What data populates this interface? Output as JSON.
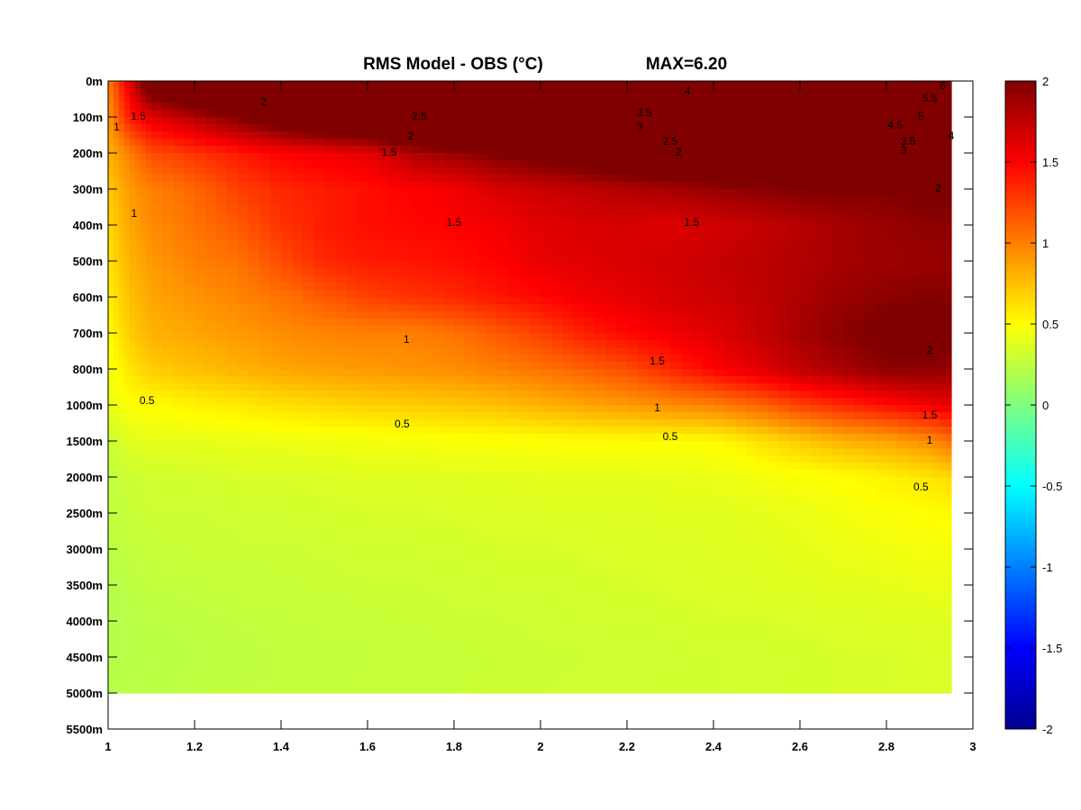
{
  "chart_data": {
    "type": "heatmap",
    "title": "RMS Model - OBS (°C)",
    "annotation": "MAX=6.20",
    "x_ticks": [
      "1",
      "1.2",
      "1.4",
      "1.6",
      "1.8",
      "2",
      "2.2",
      "2.4",
      "2.6",
      "2.8",
      "3"
    ],
    "x_range": [
      1,
      3
    ],
    "y_ticks": [
      "0m",
      "100m",
      "200m",
      "300m",
      "400m",
      "500m",
      "600m",
      "700m",
      "800m",
      "1000m",
      "1500m",
      "2000m",
      "2500m",
      "3000m",
      "3500m",
      "4000m",
      "4500m",
      "5000m",
      "5500m"
    ],
    "colorbar": {
      "min": -2,
      "max": 2,
      "ticks": [
        "2",
        "1.5",
        "1",
        "0.5",
        "0",
        "-0.5",
        "-1",
        "-1.5",
        "-2"
      ],
      "colormap": "jet"
    },
    "x_columns": [
      1.0,
      1.05,
      1.1,
      1.2,
      1.3,
      1.4,
      1.5,
      1.6,
      1.7,
      1.8,
      1.9,
      2.0,
      2.1,
      2.2,
      2.3,
      2.4,
      2.5,
      2.6,
      2.7,
      2.8,
      2.9,
      2.95
    ],
    "depth_levels": [
      "0m",
      "100m",
      "200m",
      "300m",
      "400m",
      "500m",
      "600m",
      "700m",
      "800m",
      "1000m",
      "1500m",
      "2000m",
      "2500m",
      "3000m",
      "3500m",
      "4000m",
      "4500m",
      "5000m"
    ],
    "values": [
      [
        1.0,
        1.6,
        2.3,
        2.6,
        2.9,
        3.4,
        3.6,
        3.8,
        4.0,
        4.3,
        4.6,
        4.8,
        5.0,
        5.2,
        5.4,
        5.6,
        5.8,
        5.9,
        6.0,
        6.1,
        6.2,
        6.2
      ],
      [
        0.9,
        1.4,
        1.6,
        1.8,
        2.0,
        2.2,
        2.4,
        2.5,
        2.8,
        3.0,
        3.2,
        3.4,
        3.6,
        3.8,
        4.0,
        4.2,
        4.4,
        4.6,
        4.8,
        5.0,
        5.1,
        5.2
      ],
      [
        0.8,
        1.0,
        1.2,
        1.3,
        1.4,
        1.5,
        1.55,
        1.6,
        1.8,
        1.9,
        2.0,
        2.1,
        2.2,
        2.3,
        2.4,
        2.5,
        2.6,
        2.7,
        2.8,
        2.9,
        3.0,
        3.0
      ],
      [
        0.7,
        0.9,
        1.0,
        1.1,
        1.25,
        1.35,
        1.4,
        1.45,
        1.5,
        1.55,
        1.65,
        1.7,
        1.75,
        1.8,
        1.85,
        1.9,
        1.95,
        2.0,
        2.0,
        2.0,
        2.05,
        2.05
      ],
      [
        0.65,
        0.85,
        0.95,
        1.05,
        1.15,
        1.3,
        1.4,
        1.45,
        1.48,
        1.5,
        1.55,
        1.62,
        1.65,
        1.66,
        1.62,
        1.68,
        1.72,
        1.78,
        1.85,
        1.9,
        1.95,
        1.95
      ],
      [
        0.6,
        0.8,
        0.9,
        1.0,
        1.05,
        1.2,
        1.35,
        1.4,
        1.42,
        1.45,
        1.5,
        1.58,
        1.62,
        1.65,
        1.68,
        1.72,
        1.76,
        1.8,
        1.85,
        1.88,
        1.9,
        1.9
      ],
      [
        0.55,
        0.75,
        0.85,
        0.92,
        0.98,
        1.05,
        1.15,
        1.25,
        1.3,
        1.35,
        1.42,
        1.48,
        1.55,
        1.6,
        1.66,
        1.7,
        1.75,
        1.82,
        1.9,
        1.95,
        1.98,
        1.98
      ],
      [
        0.5,
        0.7,
        0.8,
        0.85,
        0.9,
        0.95,
        0.98,
        1.0,
        1.0,
        1.05,
        1.15,
        1.25,
        1.38,
        1.48,
        1.55,
        1.62,
        1.72,
        1.85,
        1.95,
        2.05,
        2.1,
        2.05
      ],
      [
        0.45,
        0.6,
        0.7,
        0.75,
        0.8,
        0.85,
        0.88,
        0.9,
        0.92,
        0.95,
        1.0,
        1.05,
        1.12,
        1.2,
        1.35,
        1.5,
        1.62,
        1.75,
        1.85,
        1.95,
        1.95,
        1.9
      ],
      [
        0.4,
        0.5,
        0.5,
        0.55,
        0.58,
        0.62,
        0.65,
        0.68,
        0.7,
        0.72,
        0.75,
        0.8,
        0.85,
        0.9,
        0.95,
        1.0,
        1.1,
        1.25,
        1.35,
        1.45,
        1.55,
        1.6
      ],
      [
        0.3,
        0.38,
        0.4,
        0.4,
        0.42,
        0.43,
        0.44,
        0.45,
        0.46,
        0.48,
        0.48,
        0.49,
        0.5,
        0.5,
        0.5,
        0.5,
        0.6,
        0.7,
        0.8,
        0.85,
        0.95,
        1.05
      ],
      [
        0.25,
        0.3,
        0.32,
        0.33,
        0.35,
        0.35,
        0.36,
        0.38,
        0.38,
        0.38,
        0.39,
        0.4,
        0.4,
        0.4,
        0.41,
        0.42,
        0.45,
        0.48,
        0.5,
        0.55,
        0.6,
        0.65
      ],
      [
        0.25,
        0.28,
        0.3,
        0.3,
        0.31,
        0.32,
        0.33,
        0.34,
        0.34,
        0.35,
        0.36,
        0.36,
        0.37,
        0.37,
        0.38,
        0.38,
        0.4,
        0.42,
        0.45,
        0.48,
        0.5,
        0.52
      ],
      [
        0.24,
        0.27,
        0.28,
        0.29,
        0.3,
        0.3,
        0.31,
        0.32,
        0.32,
        0.33,
        0.34,
        0.34,
        0.35,
        0.36,
        0.36,
        0.37,
        0.38,
        0.4,
        0.42,
        0.44,
        0.46,
        0.46
      ],
      [
        0.2,
        0.24,
        0.26,
        0.27,
        0.28,
        0.28,
        0.29,
        0.3,
        0.3,
        0.31,
        0.32,
        0.32,
        0.33,
        0.34,
        0.35,
        0.36,
        0.37,
        0.38,
        0.39,
        0.4,
        0.42,
        0.42
      ],
      [
        0.2,
        0.22,
        0.24,
        0.25,
        0.26,
        0.27,
        0.28,
        0.28,
        0.29,
        0.3,
        0.3,
        0.31,
        0.32,
        0.32,
        0.33,
        0.34,
        0.34,
        0.35,
        0.36,
        0.37,
        0.38,
        0.38
      ],
      [
        0.2,
        0.22,
        0.23,
        0.24,
        0.25,
        0.26,
        0.26,
        0.27,
        0.28,
        0.28,
        0.29,
        0.3,
        0.3,
        0.31,
        0.31,
        0.32,
        0.32,
        0.33,
        0.34,
        0.34,
        0.35,
        0.35
      ],
      [
        0.22,
        0.23,
        0.24,
        0.25,
        0.26,
        0.26,
        0.27,
        0.28,
        0.28,
        0.29,
        0.3,
        0.3,
        0.31,
        0.31,
        0.32,
        0.32,
        0.33,
        0.33,
        0.34,
        0.34,
        0.35,
        0.35
      ]
    ],
    "contour_labels": [
      {
        "text": "1",
        "x": 1.02,
        "depth": 1.3
      },
      {
        "text": "1.5",
        "x": 1.07,
        "depth": 1.0
      },
      {
        "text": "2",
        "x": 1.36,
        "depth": 0.6
      },
      {
        "text": "2.5",
        "x": 1.72,
        "depth": 1.0
      },
      {
        "text": "2",
        "x": 1.7,
        "depth": 1.55
      },
      {
        "text": "1.5",
        "x": 1.65,
        "depth": 2.0
      },
      {
        "text": "3.5",
        "x": 2.24,
        "depth": 0.9
      },
      {
        "text": "3",
        "x": 2.23,
        "depth": 1.3
      },
      {
        "text": "4",
        "x": 2.34,
        "depth": 0.3
      },
      {
        "text": "2.5",
        "x": 2.3,
        "depth": 1.7
      },
      {
        "text": "2",
        "x": 2.32,
        "depth": 2.0
      },
      {
        "text": "5.5",
        "x": 2.9,
        "depth": 0.5
      },
      {
        "text": "6",
        "x": 2.93,
        "depth": 0.15
      },
      {
        "text": "5",
        "x": 2.88,
        "depth": 1.0
      },
      {
        "text": "4.5",
        "x": 2.82,
        "depth": 1.25
      },
      {
        "text": "4",
        "x": 2.95,
        "depth": 1.55
      },
      {
        "text": "3.5",
        "x": 2.85,
        "depth": 1.7
      },
      {
        "text": "3",
        "x": 2.84,
        "depth": 1.95
      },
      {
        "text": "2",
        "x": 2.92,
        "depth": 3.0
      },
      {
        "text": "1.5",
        "x": 1.8,
        "depth": 3.95
      },
      {
        "text": "1.5",
        "x": 2.35,
        "depth": 3.95
      },
      {
        "text": "1",
        "x": 1.06,
        "depth": 3.7
      },
      {
        "text": "1",
        "x": 1.69,
        "depth": 7.2
      },
      {
        "text": "1.5",
        "x": 2.27,
        "depth": 7.8
      },
      {
        "text": "2",
        "x": 2.9,
        "depth": 7.5
      },
      {
        "text": "0.5",
        "x": 1.09,
        "depth": 8.9
      },
      {
        "text": "0.5",
        "x": 1.68,
        "depth": 9.55
      },
      {
        "text": "1",
        "x": 2.27,
        "depth": 9.1
      },
      {
        "text": "0.5",
        "x": 2.3,
        "depth": 9.9
      },
      {
        "text": "1.5",
        "x": 2.9,
        "depth": 9.3
      },
      {
        "text": "1",
        "x": 2.9,
        "depth": 10.0
      },
      {
        "text": "0.5",
        "x": 2.88,
        "depth": 11.3
      }
    ]
  }
}
